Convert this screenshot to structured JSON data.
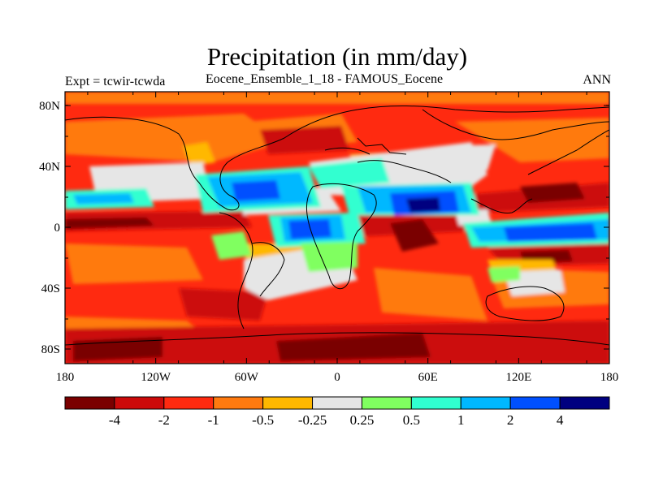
{
  "title": "Precipitation (in mm/day)",
  "subtitle_left": "Expt = tcwir-tcwda",
  "subtitle_center": "Eocene_Ensemble_1_18 - FAMOUS_Eocene",
  "subtitle_right": "ANN",
  "axes": {
    "lat_ticks": [
      "80N",
      "40N",
      "0",
      "40S",
      "80S"
    ],
    "lon_ticks": [
      "180",
      "120W",
      "60W",
      "0",
      "60E",
      "120E",
      "180"
    ]
  },
  "colorbar": {
    "colors": [
      "#7a0000",
      "#cc0a0a",
      "#ff2a10",
      "#ff7a10",
      "#ffb800",
      "#e6e6e6",
      "#80ff60",
      "#30ffd0",
      "#00b8ff",
      "#0050ff",
      "#000080"
    ],
    "labels": [
      "-4",
      "-2",
      "-1",
      "-0.5",
      "-0.25",
      "0.25",
      "0.5",
      "1",
      "2",
      "4"
    ]
  }
}
